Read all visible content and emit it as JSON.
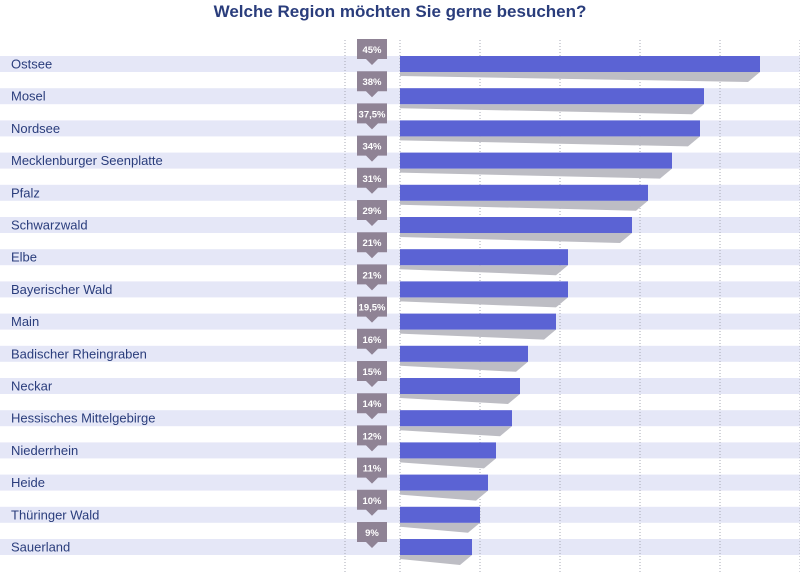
{
  "chart_data": {
    "type": "bar",
    "orientation": "horizontal",
    "title": "Welche Region möchten Sie gerne besuchen?",
    "xlabel": "",
    "ylabel": "",
    "xlim": [
      0,
      50
    ],
    "grid": true,
    "legend": "none",
    "categories": [
      "Ostsee",
      "Mosel",
      "Nordsee",
      "Mecklenburger Seenplatte",
      "Pfalz",
      "Schwarzwald",
      "Elbe",
      "Bayerischer Wald",
      "Main",
      "Badischer Rheingraben",
      "Neckar",
      "Hessisches Mittelgebirge",
      "Niederrhein",
      "Heide",
      "Thüringer Wald",
      "Sauerland"
    ],
    "values": [
      45,
      38,
      37.5,
      34,
      31,
      29,
      21,
      21,
      19.5,
      16,
      15,
      14,
      12,
      11,
      10,
      9
    ],
    "value_labels": [
      "45%",
      "38%",
      "37,5%",
      "34%",
      "31%",
      "29%",
      "21%",
      "21%",
      "19,5%",
      "16%",
      "15%",
      "14%",
      "12%",
      "11%",
      "10%",
      "9%"
    ],
    "colors": {
      "bar": "#5b63d4",
      "bar_shadow": "#bdbdc4",
      "stripe": "#e5e7f7",
      "badge": "#8f8395",
      "label_text": "#2a3d7c",
      "title": "#2a3d7c",
      "grid": "#a7a9b6"
    }
  }
}
